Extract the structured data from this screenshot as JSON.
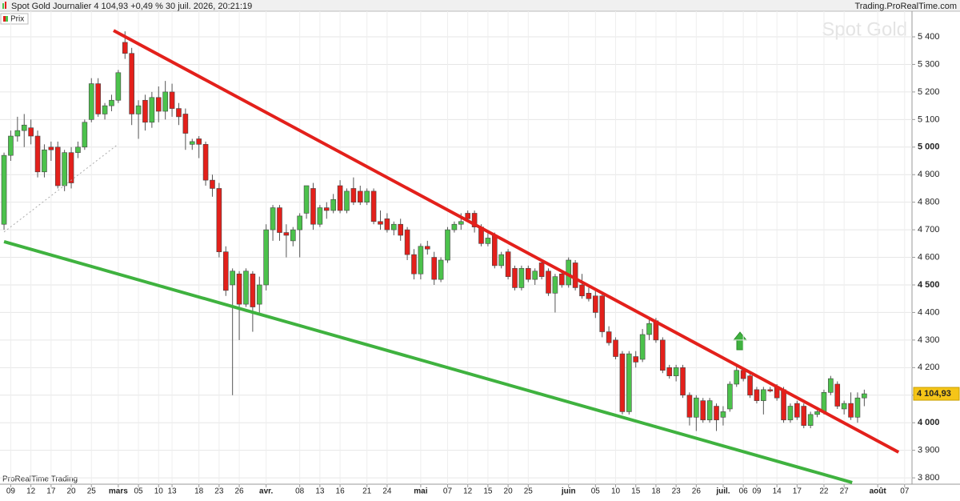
{
  "header": {
    "title": "Spot  Gold Journalier 4 104,93 +0,49 % 30 juil. 2026, 20:21:19",
    "source": "Trading.ProRealTime.com"
  },
  "chart_data": {
    "type": "candlestick",
    "legend": "Prix",
    "watermark": "Spot  Gold",
    "footer": "ProRealTime Trading",
    "up_color": "#4cc24c",
    "down_color": "#e3201b",
    "last_price": {
      "value": 4104.93,
      "label": "4 104,93"
    },
    "grid": true,
    "xlim": [
      -0.6,
      135.1
    ],
    "ylim": [
      3777,
      5493
    ],
    "yticks": [
      {
        "value": 3800,
        "label": "3 800"
      },
      {
        "value": 3900,
        "label": "3 900"
      },
      {
        "value": 4000,
        "label": "4 000"
      },
      {
        "value": 4100,
        "label": "4 100"
      },
      {
        "value": 4200,
        "label": "4 200"
      },
      {
        "value": 4300,
        "label": "4 300"
      },
      {
        "value": 4400,
        "label": "4 400"
      },
      {
        "value": 4500,
        "label": "4 500"
      },
      {
        "value": 4600,
        "label": "4 600"
      },
      {
        "value": 4700,
        "label": "4 700"
      },
      {
        "value": 4800,
        "label": "4 800"
      },
      {
        "value": 4900,
        "label": "4 900"
      },
      {
        "value": 5000,
        "label": "5 000"
      },
      {
        "value": 5100,
        "label": "5 100"
      },
      {
        "value": 5200,
        "label": "5 200"
      },
      {
        "value": 5300,
        "label": "5 300"
      },
      {
        "value": 5400,
        "label": "5 400"
      }
    ],
    "xticks": [
      {
        "value": 1,
        "label": "09"
      },
      {
        "value": 4,
        "label": "12"
      },
      {
        "value": 7,
        "label": "17"
      },
      {
        "value": 10,
        "label": "20"
      },
      {
        "value": 13,
        "label": "25"
      },
      {
        "value": 17,
        "label": "mars"
      },
      {
        "value": 20,
        "label": "05"
      },
      {
        "value": 23,
        "label": "10"
      },
      {
        "value": 25,
        "label": "13"
      },
      {
        "value": 29,
        "label": "18"
      },
      {
        "value": 32,
        "label": "23"
      },
      {
        "value": 35,
        "label": "26"
      },
      {
        "value": 39,
        "label": "avr."
      },
      {
        "value": 44,
        "label": "08"
      },
      {
        "value": 47,
        "label": "13"
      },
      {
        "value": 50,
        "label": "16"
      },
      {
        "value": 54,
        "label": "21"
      },
      {
        "value": 57,
        "label": "24"
      },
      {
        "value": 62,
        "label": "mai"
      },
      {
        "value": 66,
        "label": "07"
      },
      {
        "value": 69,
        "label": "12"
      },
      {
        "value": 72,
        "label": "15"
      },
      {
        "value": 75,
        "label": "20"
      },
      {
        "value": 78,
        "label": "25"
      },
      {
        "value": 84,
        "label": "juin"
      },
      {
        "value": 88,
        "label": "05"
      },
      {
        "value": 91,
        "label": "10"
      },
      {
        "value": 94,
        "label": "15"
      },
      {
        "value": 97,
        "label": "18"
      },
      {
        "value": 100,
        "label": "23"
      },
      {
        "value": 103,
        "label": "26"
      },
      {
        "value": 107,
        "label": "juil."
      },
      {
        "value": 110,
        "label": "06"
      },
      {
        "value": 112,
        "label": "09"
      },
      {
        "value": 115,
        "label": "14"
      },
      {
        "value": 118,
        "label": "17"
      },
      {
        "value": 122,
        "label": "22"
      },
      {
        "value": 125,
        "label": "27"
      },
      {
        "value": 130,
        "label": "août"
      },
      {
        "value": 134,
        "label": "07"
      }
    ],
    "trendlines": [
      {
        "color": "#e3201b",
        "width": 4,
        "dash": false,
        "x": [
          16.3,
          133.1
        ],
        "y": [
          5423,
          3893
        ]
      },
      {
        "color": "#3fb23f",
        "width": 4,
        "dash": false,
        "x": [
          0,
          126.2
        ],
        "y": [
          4657,
          3783
        ]
      },
      {
        "color": "#aaaaaa",
        "width": 1,
        "dash": true,
        "x": [
          0,
          17
        ],
        "y": [
          4692,
          5011
        ]
      }
    ],
    "candles": [
      [
        4720,
        4980,
        4700,
        4970
      ],
      [
        4970,
        5060,
        4950,
        5040
      ],
      [
        5040,
        5110,
        5020,
        5060
      ],
      [
        5060,
        5120,
        5000,
        5080
      ],
      [
        5070,
        5100,
        5010,
        5040
      ],
      [
        5040,
        5060,
        4890,
        4910
      ],
      [
        4910,
        5010,
        4890,
        4990
      ],
      [
        5000,
        5020,
        4950,
        4990
      ],
      [
        5000,
        5020,
        4850,
        4860
      ],
      [
        4860,
        4990,
        4840,
        4980
      ],
      [
        4980,
        5000,
        4850,
        4870
      ],
      [
        4980,
        5020,
        4960,
        5000
      ],
      [
        5000,
        5100,
        4990,
        5090
      ],
      [
        5100,
        5250,
        5090,
        5230
      ],
      [
        5230,
        5250,
        5110,
        5120
      ],
      [
        5120,
        5160,
        5100,
        5150
      ],
      [
        5150,
        5190,
        5130,
        5170
      ],
      [
        5170,
        5280,
        5160,
        5270
      ],
      [
        5380,
        5420,
        5320,
        5340
      ],
      [
        5340,
        5360,
        5080,
        5120
      ],
      [
        5120,
        5170,
        5030,
        5150
      ],
      [
        5170,
        5190,
        5060,
        5090
      ],
      [
        5090,
        5200,
        5070,
        5180
      ],
      [
        5180,
        5220,
        5090,
        5130
      ],
      [
        5130,
        5240,
        5100,
        5200
      ],
      [
        5200,
        5230,
        5110,
        5140
      ],
      [
        5140,
        5160,
        5080,
        5110
      ],
      [
        5120,
        5140,
        4990,
        5050
      ],
      [
        5010,
        5030,
        4990,
        5020
      ],
      [
        5030,
        5040,
        4960,
        5010
      ],
      [
        5010,
        5020,
        4860,
        4880
      ],
      [
        4880,
        4900,
        4820,
        4850
      ],
      [
        4850,
        4870,
        4600,
        4620
      ],
      [
        4620,
        4640,
        4460,
        4480
      ],
      [
        4500,
        4560,
        4100,
        4550
      ],
      [
        4540,
        4550,
        4300,
        4430
      ],
      [
        4430,
        4560,
        4420,
        4550
      ],
      [
        4540,
        4550,
        4330,
        4420
      ],
      [
        4430,
        4530,
        4400,
        4500
      ],
      [
        4500,
        4720,
        4480,
        4700
      ],
      [
        4700,
        4790,
        4660,
        4780
      ],
      [
        4780,
        4790,
        4660,
        4690
      ],
      [
        4690,
        4720,
        4600,
        4680
      ],
      [
        4660,
        4710,
        4640,
        4700
      ],
      [
        4700,
        4760,
        4600,
        4750
      ],
      [
        4760,
        4860,
        4740,
        4860
      ],
      [
        4850,
        4870,
        4700,
        4720
      ],
      [
        4720,
        4790,
        4710,
        4780
      ],
      [
        4780,
        4800,
        4740,
        4770
      ],
      [
        4770,
        4830,
        4760,
        4810
      ],
      [
        4860,
        4880,
        4760,
        4770
      ],
      [
        4770,
        4850,
        4760,
        4840
      ],
      [
        4850,
        4890,
        4790,
        4800
      ],
      [
        4840,
        4860,
        4790,
        4800
      ],
      [
        4800,
        4850,
        4790,
        4840
      ],
      [
        4840,
        4850,
        4720,
        4730
      ],
      [
        4730,
        4770,
        4700,
        4720
      ],
      [
        4740,
        4760,
        4690,
        4700
      ],
      [
        4700,
        4730,
        4680,
        4720
      ],
      [
        4720,
        4740,
        4660,
        4680
      ],
      [
        4700,
        4710,
        4590,
        4610
      ],
      [
        4610,
        4630,
        4520,
        4540
      ],
      [
        4540,
        4650,
        4520,
        4640
      ],
      [
        4640,
        4660,
        4610,
        4630
      ],
      [
        4600,
        4620,
        4500,
        4520
      ],
      [
        4520,
        4600,
        4510,
        4590
      ],
      [
        4590,
        4710,
        4580,
        4700
      ],
      [
        4700,
        4730,
        4690,
        4720
      ],
      [
        4720,
        4760,
        4700,
        4730
      ],
      [
        4760,
        4770,
        4730,
        4740
      ],
      [
        4760,
        4770,
        4690,
        4710
      ],
      [
        4710,
        4720,
        4640,
        4650
      ],
      [
        4650,
        4690,
        4640,
        4670
      ],
      [
        4680,
        4690,
        4560,
        4570
      ],
      [
        4570,
        4620,
        4560,
        4610
      ],
      [
        4620,
        4630,
        4520,
        4530
      ],
      [
        4560,
        4570,
        4480,
        4490
      ],
      [
        4490,
        4570,
        4480,
        4560
      ],
      [
        4560,
        4570,
        4510,
        4520
      ],
      [
        4520,
        4560,
        4500,
        4550
      ],
      [
        4580,
        4590,
        4520,
        4530
      ],
      [
        4550,
        4560,
        4460,
        4470
      ],
      [
        4470,
        4540,
        4400,
        4530
      ],
      [
        4540,
        4550,
        4490,
        4500
      ],
      [
        4500,
        4600,
        4490,
        4590
      ],
      [
        4580,
        4590,
        4480,
        4490
      ],
      [
        4500,
        4540,
        4450,
        4460
      ],
      [
        4470,
        4490,
        4440,
        4450
      ],
      [
        4460,
        4480,
        4380,
        4400
      ],
      [
        4460,
        4470,
        4310,
        4330
      ],
      [
        4330,
        4350,
        4280,
        4290
      ],
      [
        4300,
        4310,
        4230,
        4240
      ],
      [
        4250,
        4260,
        4030,
        4040
      ],
      [
        4040,
        4260,
        4030,
        4250
      ],
      [
        4240,
        4260,
        4200,
        4220
      ],
      [
        4230,
        4340,
        4220,
        4320
      ],
      [
        4320,
        4380,
        4300,
        4360
      ],
      [
        4370,
        4380,
        4290,
        4300
      ],
      [
        4300,
        4310,
        4180,
        4190
      ],
      [
        4200,
        4210,
        4160,
        4170
      ],
      [
        4170,
        4210,
        4150,
        4200
      ],
      [
        4200,
        4210,
        4090,
        4100
      ],
      [
        4100,
        4110,
        3990,
        4020
      ],
      [
        4020,
        4100,
        3970,
        4090
      ],
      [
        4080,
        4090,
        4000,
        4010
      ],
      [
        4010,
        4090,
        4000,
        4080
      ],
      [
        4060,
        4070,
        3970,
        4010
      ],
      [
        4020,
        4060,
        3990,
        4040
      ],
      [
        4050,
        4150,
        4040,
        4140
      ],
      [
        4140,
        4210,
        4130,
        4190
      ],
      [
        4190,
        4200,
        4150,
        4160
      ],
      [
        4170,
        4180,
        4090,
        4100
      ],
      [
        4120,
        4130,
        4070,
        4080
      ],
      [
        4080,
        4130,
        4030,
        4120
      ],
      [
        4120,
        4130,
        4110,
        4115
      ],
      [
        4130,
        4140,
        4080,
        4090
      ],
      [
        4120,
        4130,
        4000,
        4010
      ],
      [
        4010,
        4070,
        4000,
        4060
      ],
      [
        4070,
        4080,
        4010,
        4020
      ],
      [
        4060,
        4070,
        3980,
        3990
      ],
      [
        3990,
        4040,
        3980,
        4030
      ],
      [
        4030,
        4050,
        4020,
        4040
      ],
      [
        4040,
        4120,
        4030,
        4110
      ],
      [
        4110,
        4170,
        4100,
        4160
      ],
      [
        4140,
        4150,
        4050,
        4060
      ],
      [
        4050,
        4080,
        4030,
        4070
      ],
      [
        4070,
        4110,
        4010,
        4020
      ],
      [
        4020,
        4110,
        4000,
        4090
      ],
      [
        4090,
        4120,
        4060,
        4104.93
      ]
    ]
  }
}
